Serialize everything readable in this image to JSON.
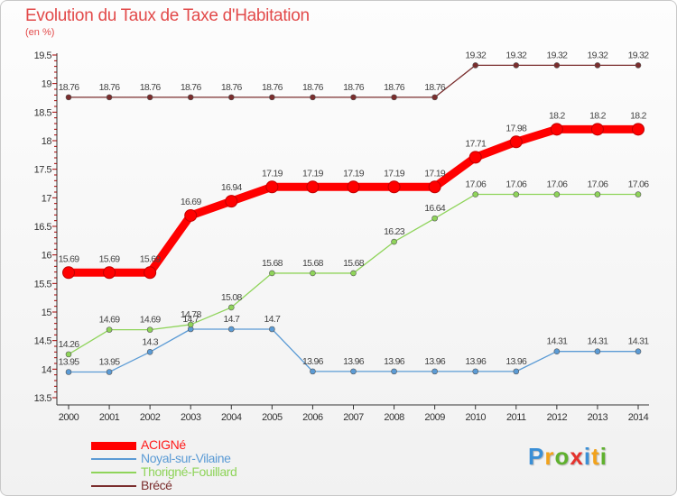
{
  "title": "Evolution du Taux de Taxe d'Habitation",
  "subtitle": "(en %)",
  "logo": {
    "text": "Proxiti",
    "colors": [
      "#3a8fd6",
      "#f2a21b",
      "#5fb12e",
      "#e5322d",
      "#3a8fd6",
      "#f2a21b",
      "#5fb12e"
    ]
  },
  "chart_data": {
    "type": "line",
    "x": [
      "2000",
      "2001",
      "2002",
      "2003",
      "2004",
      "2005",
      "2006",
      "2007",
      "2008",
      "2009",
      "2010",
      "2011",
      "2012",
      "2013",
      "2014"
    ],
    "ylim": [
      13.5,
      19.5
    ],
    "yticks": [
      "13.5",
      "14",
      "14.5",
      "15",
      "15.5",
      "16",
      "16.5",
      "17",
      "17.5",
      "18",
      "18.5",
      "19",
      "19.5"
    ],
    "grid": false,
    "legend_position": "bottom-left",
    "series": [
      {
        "name": "ACIGNé",
        "color": "#ff0000",
        "values": [
          15.69,
          15.69,
          15.69,
          16.69,
          16.94,
          17.19,
          17.19,
          17.19,
          17.19,
          17.19,
          17.71,
          17.98,
          18.2,
          18.2,
          18.2
        ],
        "labels": [
          "15.69",
          "15.69",
          "15.69",
          "16.69",
          "16.94",
          "17.19",
          "17.19",
          "17.19",
          "17.19",
          "17.19",
          "17.71",
          "17.98",
          "18.2",
          "18.2",
          "18.2"
        ]
      },
      {
        "name": "Noyal-sur-Vilaine",
        "color": "#5b9bd5",
        "values": [
          13.95,
          13.95,
          14.3,
          14.7,
          14.7,
          14.7,
          13.96,
          13.96,
          13.96,
          13.96,
          13.96,
          13.96,
          14.31,
          14.31,
          14.31
        ],
        "labels": [
          "13.95",
          "13.95",
          "14.3",
          "14.7",
          "14.7",
          "14.7",
          "13.96",
          "13.96",
          "13.96",
          "13.96",
          "13.96",
          "13.96",
          "14.31",
          "14.31",
          "14.31"
        ]
      },
      {
        "name": "Thorigné-Fouillard",
        "color": "#8fd45a",
        "values": [
          14.26,
          14.69,
          14.69,
          14.78,
          15.08,
          15.68,
          15.68,
          15.68,
          16.23,
          16.64,
          17.06,
          17.06,
          17.06,
          17.06,
          17.06
        ],
        "labels": [
          "14.26",
          "14.69",
          "14.69",
          "14.78",
          "15.08",
          "15.68",
          "15.68",
          "15.68",
          "16.23",
          "16.64",
          "17.06",
          "17.06",
          "17.06",
          "17.06",
          "17.06"
        ]
      },
      {
        "name": "Brécé",
        "color": "#7a2d2d",
        "values": [
          18.76,
          18.76,
          18.76,
          18.76,
          18.76,
          18.76,
          18.76,
          18.76,
          18.76,
          18.76,
          19.32,
          19.32,
          19.32,
          19.32,
          19.32
        ],
        "labels": [
          "18.76",
          "18.76",
          "18.76",
          "18.76",
          "18.76",
          "18.76",
          "18.76",
          "18.76",
          "18.76",
          "18.76",
          "19.32",
          "19.32",
          "19.32",
          "19.32",
          "19.32"
        ]
      }
    ]
  }
}
